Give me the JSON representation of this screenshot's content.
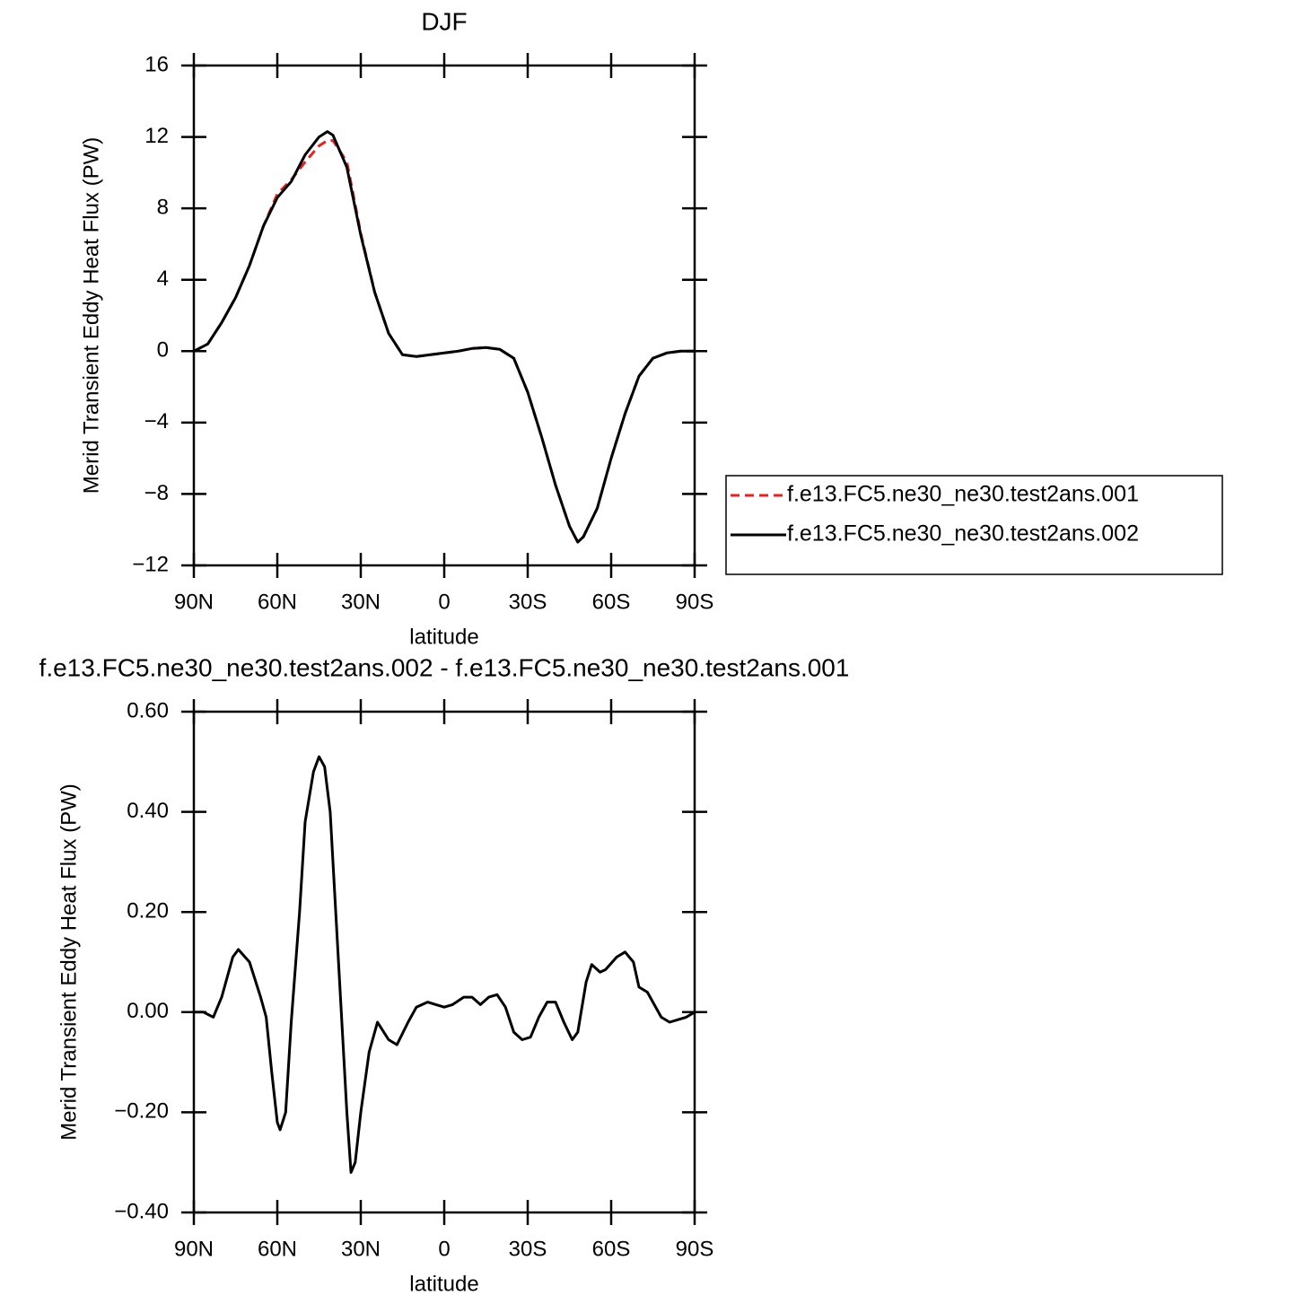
{
  "chart_data": [
    {
      "type": "line",
      "title": "DJF",
      "xlabel": "latitude",
      "ylabel": "Merid Transient Eddy Heat Flux (PW)",
      "xlim": [
        90,
        -90
      ],
      "ylim": [
        -12,
        16
      ],
      "xticks": [
        {
          "value": 90,
          "label": "90N"
        },
        {
          "value": 60,
          "label": "60N"
        },
        {
          "value": 30,
          "label": "30N"
        },
        0,
        {
          "value": -30,
          "label": "30S"
        },
        {
          "value": -60,
          "label": "60S"
        },
        {
          "value": -90,
          "label": "90S"
        }
      ],
      "yticks": [
        {
          "value": -12,
          "label": "−12"
        },
        {
          "value": -8,
          "label": "−8"
        },
        {
          "value": -4,
          "label": "−4"
        },
        0,
        4,
        8,
        12,
        16
      ],
      "legend": "right",
      "x": [
        90,
        85,
        80,
        75,
        70,
        65,
        60,
        55,
        50,
        45,
        42,
        40,
        35,
        30,
        25,
        20,
        15,
        10,
        5,
        0,
        -5,
        -10,
        -15,
        -20,
        -25,
        -30,
        -35,
        -40,
        -45,
        -48,
        -50,
        -55,
        -60,
        -65,
        -70,
        -75,
        -80,
        -85,
        -90
      ],
      "series": [
        {
          "name": "f.e13.FC5.ne30_ne30.test2ans.001",
          "color": "#e8201c",
          "dashed": true,
          "values": [
            0,
            0.4,
            1.6,
            3.0,
            4.8,
            7.0,
            8.8,
            9.6,
            10.6,
            11.5,
            11.8,
            11.8,
            10.6,
            6.6,
            3.3,
            1.0,
            -0.2,
            -0.3,
            -0.2,
            -0.1,
            0.0,
            0.15,
            0.2,
            0.1,
            -0.4,
            -2.3,
            -4.8,
            -7.5,
            -9.8,
            -10.7,
            -10.4,
            -8.8,
            -6.0,
            -3.5,
            -1.4,
            -0.4,
            -0.1,
            0,
            0
          ]
        },
        {
          "name": "f.e13.FC5.ne30_ne30.test2ans.002",
          "color": "#000000",
          "dashed": false,
          "values": [
            0,
            0.4,
            1.6,
            3.0,
            4.8,
            7.0,
            8.6,
            9.5,
            11.0,
            12.0,
            12.3,
            12.1,
            10.3,
            6.5,
            3.3,
            1.0,
            -0.2,
            -0.3,
            -0.2,
            -0.1,
            0.0,
            0.15,
            0.2,
            0.1,
            -0.4,
            -2.3,
            -4.8,
            -7.5,
            -9.8,
            -10.7,
            -10.4,
            -8.8,
            -6.0,
            -3.5,
            -1.4,
            -0.4,
            -0.1,
            0,
            0
          ]
        }
      ]
    },
    {
      "type": "line",
      "title": "f.e13.FC5.ne30_ne30.test2ans.002 - f.e13.FC5.ne30_ne30.test2ans.001",
      "xlabel": "latitude",
      "ylabel": "Merid Transient Eddy Heat Flux (PW)",
      "xlim": [
        90,
        -90
      ],
      "ylim": [
        -0.4,
        0.6
      ],
      "xticks": [
        {
          "value": 90,
          "label": "90N"
        },
        {
          "value": 60,
          "label": "60N"
        },
        {
          "value": 30,
          "label": "30N"
        },
        0,
        {
          "value": -30,
          "label": "30S"
        },
        {
          "value": -60,
          "label": "60S"
        },
        {
          "value": -90,
          "label": "90S"
        }
      ],
      "yticks": [
        {
          "value": -0.4,
          "label": "−0.40"
        },
        {
          "value": -0.2,
          "label": "−0.20"
        },
        {
          "value": 0,
          "label": "0.00"
        },
        {
          "value": 0.2,
          "label": "0.20"
        },
        {
          "value": 0.4,
          "label": "0.40"
        },
        {
          "value": 0.6,
          "label": "0.60"
        }
      ],
      "x": [
        90,
        86.5,
        83,
        80,
        76,
        74,
        70,
        66,
        64,
        62,
        60,
        59,
        57,
        55,
        52,
        50,
        47,
        45,
        43,
        41,
        38,
        35,
        33.5,
        32,
        30,
        27,
        24,
        20,
        17,
        13,
        10,
        6,
        3,
        0,
        -3,
        -7,
        -10,
        -13,
        -16,
        -19,
        -22,
        -25,
        -28,
        -31,
        -34,
        -37,
        -40,
        -43,
        -46,
        -48,
        -51,
        -53,
        -56,
        -58,
        -62,
        -65,
        -68,
        -70,
        -73,
        -75,
        -78,
        -81,
        -84,
        -87,
        -90
      ],
      "series": [
        {
          "color": "#000000",
          "values": [
            0,
            0,
            -0.01,
            0.03,
            0.11,
            0.125,
            0.1,
            0.03,
            -0.01,
            -0.12,
            -0.22,
            -0.235,
            -0.2,
            -0.02,
            0.2,
            0.38,
            0.48,
            0.51,
            0.49,
            0.4,
            0.1,
            -0.2,
            -0.32,
            -0.3,
            -0.2,
            -0.08,
            -0.02,
            -0.055,
            -0.065,
            -0.02,
            0.01,
            0.02,
            0.015,
            0.01,
            0.015,
            0.03,
            0.03,
            0.015,
            0.03,
            0.035,
            0.01,
            -0.04,
            -0.055,
            -0.05,
            -0.01,
            0.02,
            0.02,
            -0.02,
            -0.055,
            -0.04,
            0.06,
            0.095,
            0.08,
            0.085,
            0.11,
            0.12,
            0.1,
            0.05,
            0.04,
            0.02,
            -0.01,
            -0.02,
            -0.015,
            -0.01,
            0
          ]
        }
      ]
    }
  ]
}
